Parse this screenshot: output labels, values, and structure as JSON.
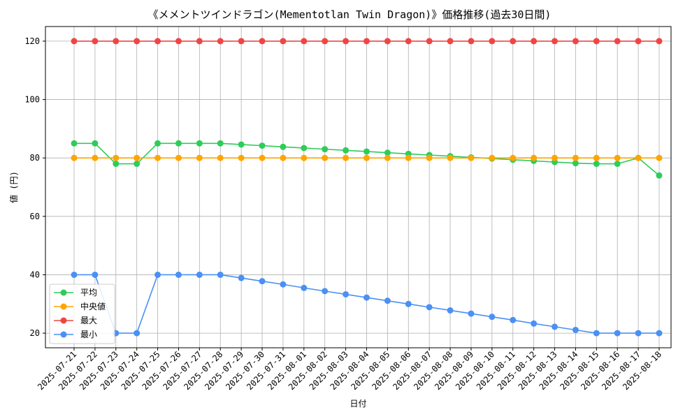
{
  "chart_data": {
    "type": "line",
    "title": "《メメントツインドラゴン(Mementotlan Twin Dragon)》価格推移(過去30日間)",
    "xlabel": "日付",
    "ylabel": "値 (円)",
    "ylim": [
      15,
      125
    ],
    "yticks": [
      20,
      40,
      60,
      80,
      100,
      120
    ],
    "grid": true,
    "legend_position": "lower-left",
    "x": [
      "2025-07-21",
      "2025-07-22",
      "2025-07-23",
      "2025-07-24",
      "2025-07-25",
      "2025-07-26",
      "2025-07-27",
      "2025-07-28",
      "2025-07-29",
      "2025-07-30",
      "2025-07-31",
      "2025-08-01",
      "2025-08-02",
      "2025-08-03",
      "2025-08-04",
      "2025-08-05",
      "2025-08-06",
      "2025-08-07",
      "2025-08-08",
      "2025-08-09",
      "2025-08-10",
      "2025-08-11",
      "2025-08-12",
      "2025-08-13",
      "2025-08-14",
      "2025-08-15",
      "2025-08-16",
      "2025-08-17",
      "2025-08-18"
    ],
    "series": [
      {
        "name": "平均",
        "color": "#2ecc5a",
        "values": [
          85,
          85,
          78,
          78,
          85,
          85,
          85,
          85,
          84.6,
          84.2,
          83.8,
          83.4,
          83,
          82.6,
          82.2,
          81.8,
          81.4,
          81,
          80.6,
          80.2,
          79.8,
          79.4,
          79,
          78.6,
          78.2,
          78,
          78,
          80,
          74
        ]
      },
      {
        "name": "中央値",
        "color": "#ffa500",
        "values": [
          80,
          80,
          80,
          80,
          80,
          80,
          80,
          80,
          80,
          80,
          80,
          80,
          80,
          80,
          80,
          80,
          80,
          80,
          80,
          80,
          80,
          80,
          80,
          80,
          80,
          80,
          80,
          80,
          80
        ]
      },
      {
        "name": "最大",
        "color": "#f04545",
        "values": [
          120,
          120,
          120,
          120,
          120,
          120,
          120,
          120,
          120,
          120,
          120,
          120,
          120,
          120,
          120,
          120,
          120,
          120,
          120,
          120,
          120,
          120,
          120,
          120,
          120,
          120,
          120,
          120,
          120
        ]
      },
      {
        "name": "最小",
        "color": "#4a90f5",
        "values": [
          40,
          40,
          20,
          20,
          40,
          40,
          40,
          40,
          38.9,
          37.8,
          36.7,
          35.5,
          34.4,
          33.3,
          32.2,
          31.1,
          30,
          28.9,
          27.8,
          26.7,
          25.6,
          24.5,
          23.3,
          22.2,
          21.1,
          20,
          20,
          20,
          20
        ]
      }
    ]
  }
}
